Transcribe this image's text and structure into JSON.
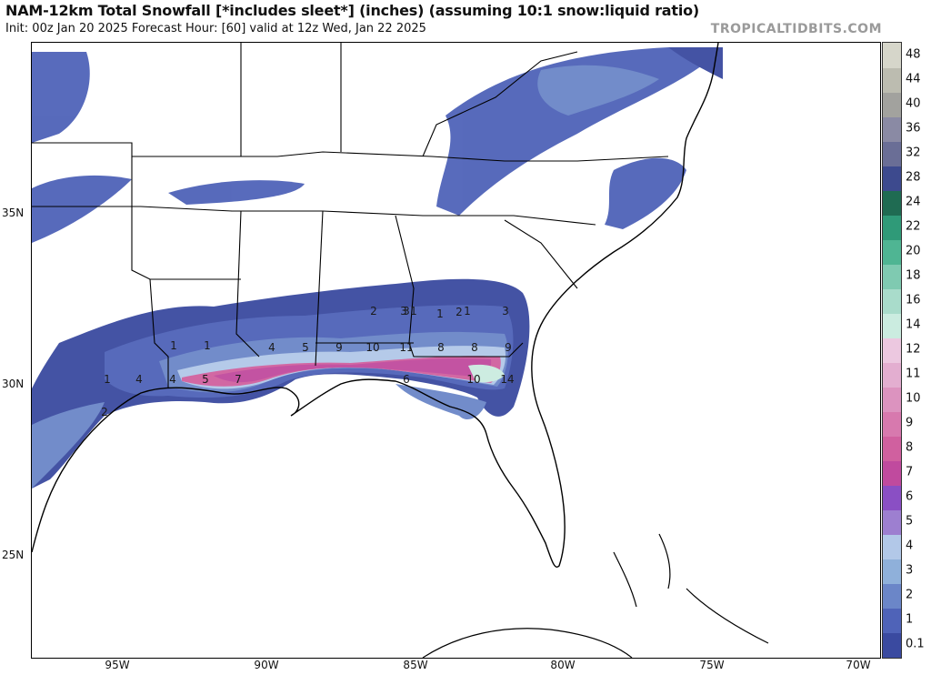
{
  "header": {
    "title": "NAM-12km Total Snowfall [*includes sleet*] (inches) (assuming 10:1 snow:liquid ratio)",
    "subtitle": "Init: 00z Jan 20 2025   Forecast Hour: [60]   valid at 12z Wed, Jan 22 2025",
    "brand": "TROPICALTIDBITS.COM"
  },
  "map": {
    "lat_labels": [
      "35N",
      "30N",
      "25N"
    ],
    "lon_labels": [
      "95W",
      "90W",
      "85W",
      "80W",
      "75W",
      "70W"
    ],
    "contour_labels": [
      "1",
      "1",
      "1",
      "1",
      "1",
      "1",
      "2",
      "2",
      "2",
      "3",
      "3",
      "3",
      "4",
      "4",
      "4",
      "5",
      "5",
      "6",
      "7",
      "8",
      "8",
      "9",
      "9",
      "10",
      "10",
      "11",
      "14"
    ],
    "colors": {
      "land": "#ffffff",
      "border": "#000000",
      "county": "#9a9a9a"
    }
  },
  "colorbar": {
    "levels": [
      "0.1",
      "1",
      "2",
      "3",
      "4",
      "5",
      "6",
      "7",
      "8",
      "9",
      "10",
      "11",
      "12",
      "14",
      "16",
      "18",
      "20",
      "22",
      "24",
      "28",
      "32",
      "36",
      "40",
      "44",
      "48"
    ],
    "colors": [
      "#3a4aa0",
      "#4f63b8",
      "#6b86c8",
      "#8fb0da",
      "#b2c8e8",
      "#9d7fd0",
      "#8a4fc4",
      "#c04a9e",
      "#d0609f",
      "#d779ae",
      "#dc93bf",
      "#e3aed0",
      "#ecc8e0",
      "#cbece0",
      "#a9dccb",
      "#7fcab1",
      "#4fb593",
      "#2f9a78",
      "#1f6b52",
      "#3d4a8e",
      "#6a6e96",
      "#8a8aa4",
      "#a2a29e",
      "#bcbcb0",
      "#d6d6ca"
    ]
  }
}
